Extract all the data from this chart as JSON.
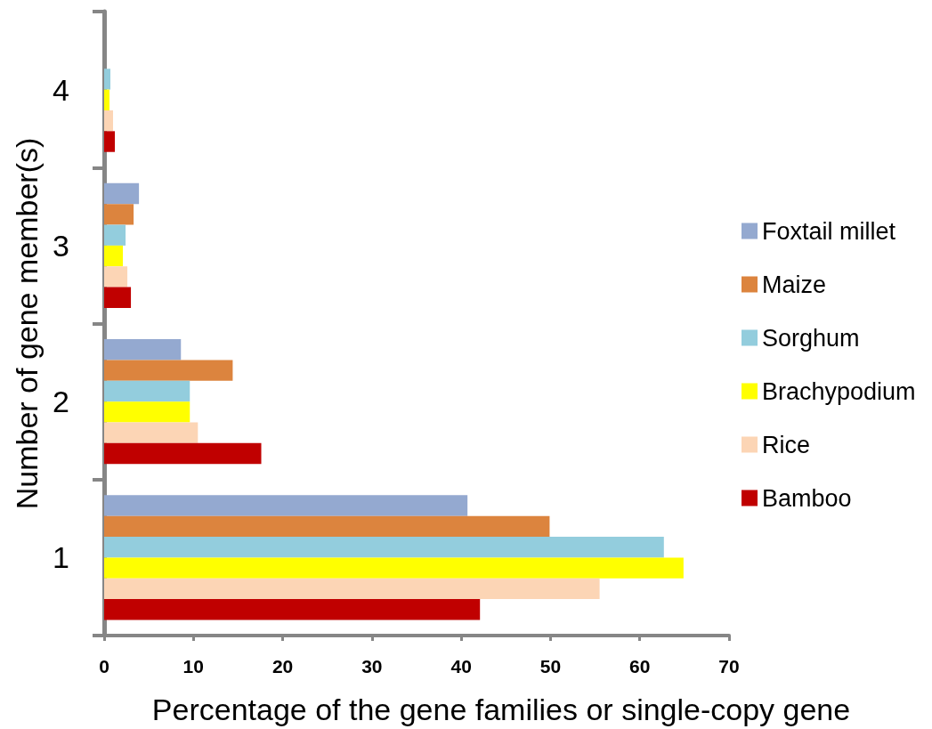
{
  "chart_data": {
    "type": "bar",
    "orientation": "horizontal",
    "xlabel": "Percentage of the gene families or single-copy gene",
    "ylabel": "Number of gene member(s)",
    "categories": [
      "4",
      "3",
      "2",
      "1"
    ],
    "series": [
      {
        "name": "Foxtail millet",
        "color": "#94a9d0",
        "values": [
          null,
          3.9,
          8.6,
          40.7
        ]
      },
      {
        "name": "Maize",
        "color": "#dc843e",
        "values": [
          null,
          3.3,
          14.4,
          49.9
        ]
      },
      {
        "name": "Sorghum",
        "color": "#93cddd",
        "values": [
          0.7,
          2.4,
          9.6,
          62.7
        ]
      },
      {
        "name": "Brachypodium",
        "color": "#ffff00",
        "values": [
          0.6,
          2.1,
          9.6,
          64.9
        ]
      },
      {
        "name": "Rice",
        "color": "#fcd5b5",
        "values": [
          1.0,
          2.6,
          10.5,
          55.5
        ]
      },
      {
        "name": "Bamboo",
        "color": "#c00000",
        "values": [
          1.2,
          3.0,
          17.6,
          42.1
        ]
      }
    ],
    "xlim": [
      0,
      70
    ],
    "xticks": [
      0,
      10,
      20,
      30,
      40,
      50,
      60,
      70
    ],
    "grid": false,
    "legend": "right"
  }
}
